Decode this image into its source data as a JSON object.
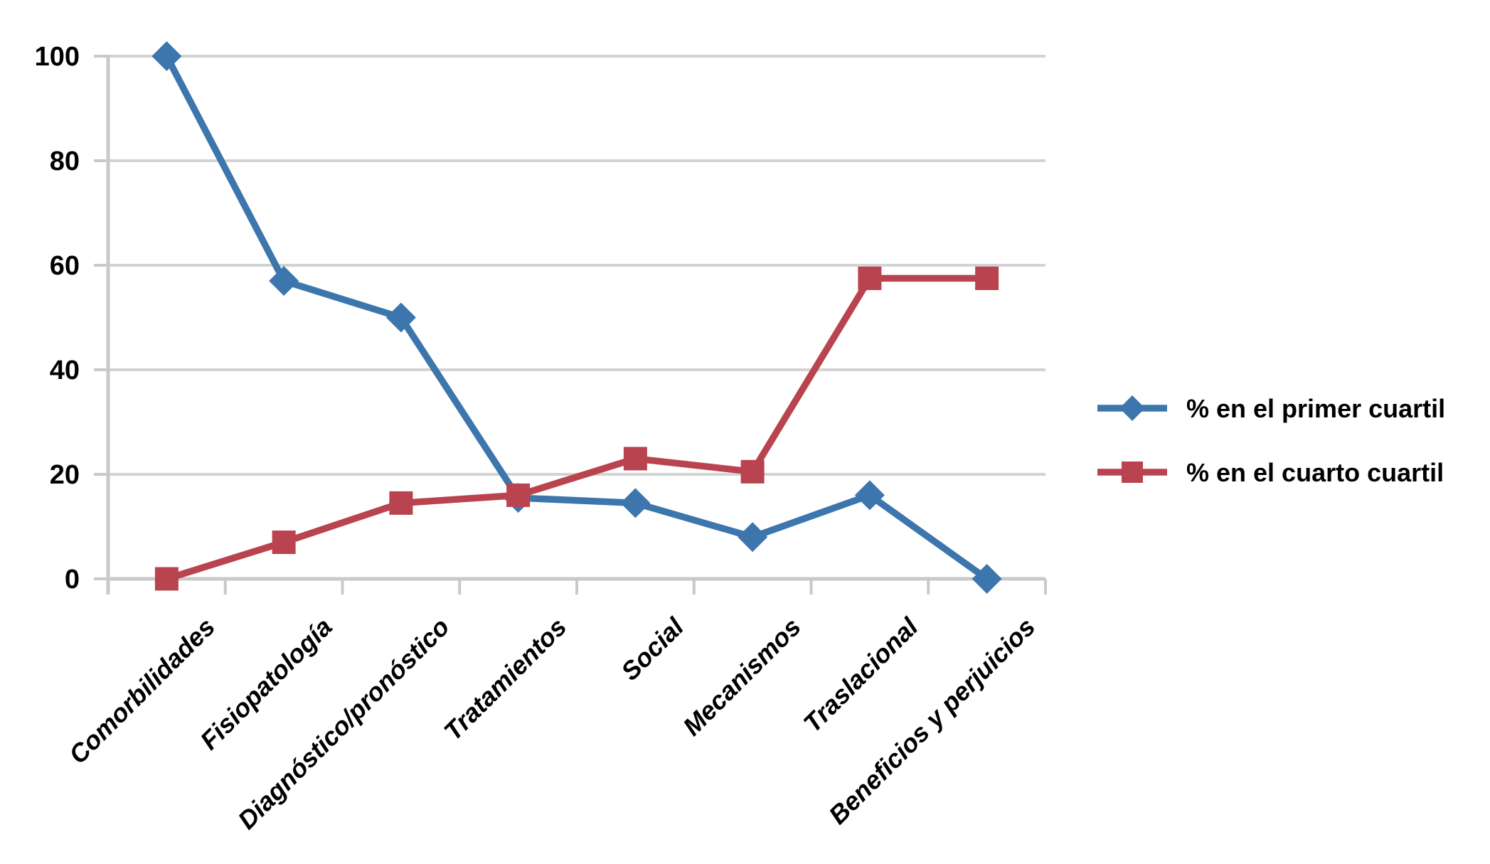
{
  "figure": {
    "background": "#FFFFFF"
  },
  "chart_data": {
    "type": "line",
    "title": "",
    "categories": [
      "Comorbilidades",
      "Fisiopatología",
      "Diagnóstico/pronóstico",
      "Tratamientos",
      "Social",
      "Mecanismos",
      "Traslacional",
      "Beneficios y perjuicios"
    ],
    "series": [
      {
        "name": "% en el primer cuartil",
        "marker": "diamond",
        "color": "#3C76AC",
        "values": [
          100,
          57,
          50,
          15.5,
          14.5,
          8,
          16,
          0
        ]
      },
      {
        "name": "% en el cuarto cuartil",
        "marker": "square",
        "color": "#B9434E",
        "values": [
          0,
          7,
          14.5,
          16,
          23,
          20.5,
          57.5,
          57.5
        ]
      }
    ],
    "ylim": [
      0,
      100
    ],
    "yticks": [
      0,
      20,
      40,
      60,
      80,
      100
    ],
    "grid": true,
    "legend_position": "right-middle",
    "gridline_color": "#D3D3D3",
    "axis_color": "#C9C9C9",
    "label_color": "#000000"
  }
}
